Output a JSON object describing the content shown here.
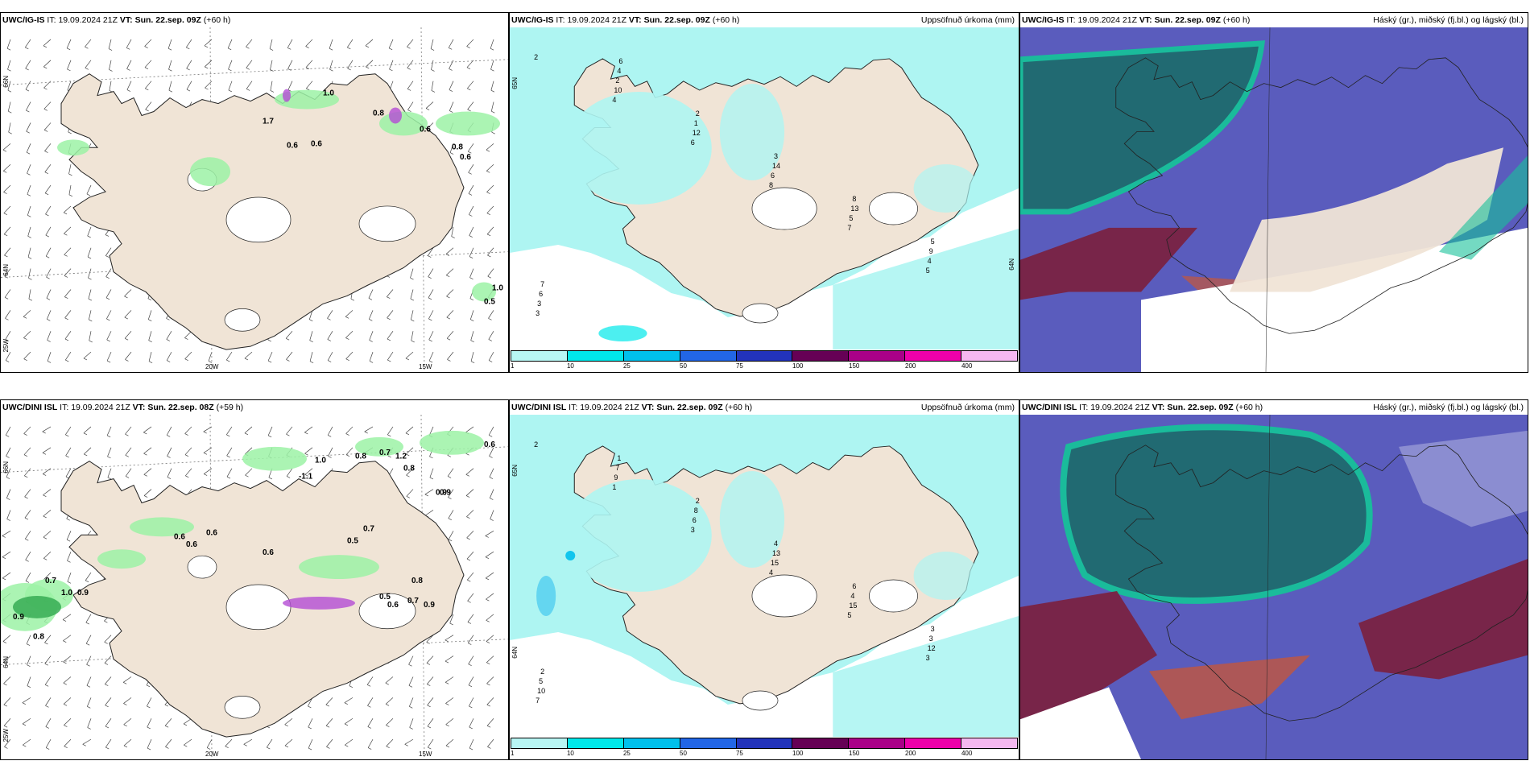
{
  "panels": [
    {
      "id": "p1",
      "title_prefix": "UWC/IG-IS",
      "it_label": "IT:",
      "it": "19.09.2024 21Z",
      "vt_label": "VT:",
      "vt": "Sun. 22.sep. 09Z",
      "lead": "(+60 h)",
      "right": "",
      "lat_labels": [
        "66N",
        "64N",
        "25W"
      ],
      "lon_labels": [
        "20W",
        "15W"
      ],
      "values": [
        "0.6",
        "0.6",
        "0.8",
        "0.6",
        "1.0",
        "1.7",
        "0.8",
        "0.6",
        "0.5",
        "1.0"
      ]
    },
    {
      "id": "p2",
      "title_prefix": "UWC/IG-IS",
      "it_label": "IT:",
      "it": "19.09.2024 21Z",
      "vt_label": "VT:",
      "vt": "Sun. 22.sep. 09Z",
      "lead": "(+60 h)",
      "right": "Uppsöfnuð úrkoma (mm)",
      "lat_labels": [
        "65N",
        "64N"
      ],
      "values": [
        "2",
        "4",
        "6",
        "8",
        "7",
        "5",
        "3",
        "10",
        "12",
        "6",
        "5",
        "4",
        "3",
        "2",
        "1",
        "14",
        "13",
        "9",
        "6",
        "4",
        "2",
        "3",
        "8",
        "5",
        "7",
        "6"
      ]
    },
    {
      "id": "p3",
      "title_prefix": "UWC/IG-IS",
      "it_label": "IT:",
      "it": "19.09.2024 21Z",
      "vt_label": "VT:",
      "vt": "Sun. 22.sep. 09Z",
      "lead": "(+60 h)",
      "right": "Háský (gr.), miðský (fj.bl.) og lágský (bl.)"
    },
    {
      "id": "p4",
      "title_prefix": "UWC/DINI ISL",
      "it_label": "IT:",
      "it": "19.09.2024 21Z",
      "vt_label": "VT:",
      "vt": "Sun. 22.sep. 08Z",
      "lead": "(+59 h)",
      "right": "",
      "lat_labels": [
        "66N",
        "64N",
        "25W"
      ],
      "lon_labels": [
        "20W",
        "15W"
      ],
      "values": [
        "0.6",
        "0.8",
        "0.7",
        "1.2",
        "0.9",
        "0.8",
        "-1.1",
        "1.0",
        "0.9",
        "0.6",
        "0.6",
        "0.6",
        "0.5",
        "0.7",
        "0.6",
        "0.8",
        "0.6",
        "0.5",
        "0.7",
        "0.9",
        "0.9",
        "0.7",
        "1.0",
        "0.8",
        "0.9"
      ]
    },
    {
      "id": "p5",
      "title_prefix": "UWC/DINI ISL",
      "it_label": "IT:",
      "it": "19.09.2024 21Z",
      "vt_label": "VT:",
      "vt": "Sun. 22.sep. 09Z",
      "lead": "(+60 h)",
      "right": "Uppsöfnuð úrkoma (mm)",
      "lat_labels": [
        "65N",
        "64N"
      ],
      "values": [
        "2",
        "1",
        "3",
        "4",
        "5",
        "3",
        "7",
        "9",
        "6",
        "15",
        "15",
        "12",
        "10",
        "7",
        "8",
        "13",
        "4",
        "3",
        "5",
        "1",
        "2",
        "4",
        "6",
        "3",
        "2"
      ]
    },
    {
      "id": "p6",
      "title_prefix": "UWC/DINI ISL",
      "it_label": "IT:",
      "it": "19.09.2024 21Z",
      "vt_label": "VT:",
      "vt": "Sun. 22.sep. 09Z",
      "lead": "(+60 h)",
      "right": "Háský (gr.), miðský (fj.bl.) og lágský (bl.)"
    }
  ],
  "colorbar": {
    "colors": [
      "#b8f6f4",
      "#00e8ea",
      "#00c0ec",
      "#2266e6",
      "#2233bb",
      "#660055",
      "#aa0088",
      "#ee00aa",
      "#f5b8f0"
    ],
    "ticks": [
      "1",
      "10",
      "25",
      "50",
      "75",
      "100",
      "150",
      "200",
      "400"
    ]
  },
  "palette": {
    "land": "#f0e4d6",
    "precip_light": "#aef5f2",
    "precip_green": "#9cf2a6",
    "precip_dark_green": "#2fa84d",
    "magenta": "#b44cd4",
    "high_cloud": "#1f6b6e",
    "high_cloud_edge": "#17c19a",
    "mid_cloud": "#5a5cbd",
    "low_cloud": "#7b1f3c",
    "low_cloud_orange": "#b6574b"
  }
}
